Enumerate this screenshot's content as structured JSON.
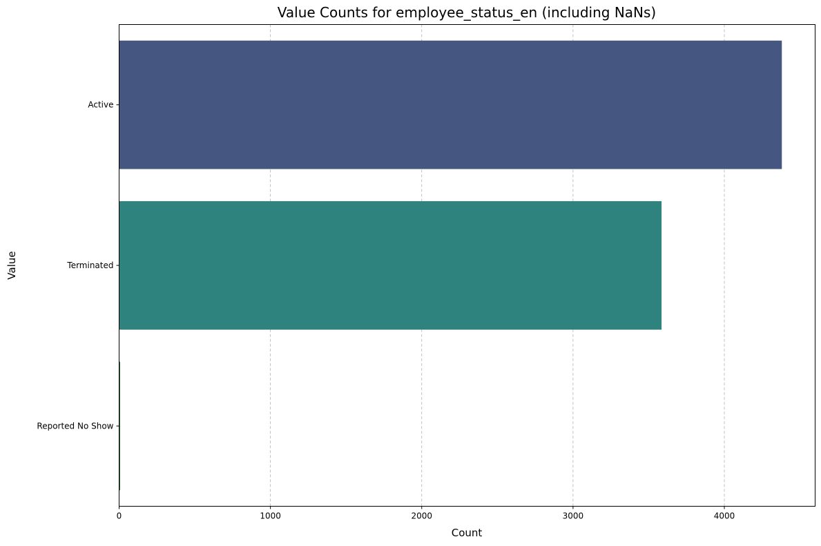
{
  "chart_data": {
    "type": "bar",
    "orientation": "horizontal",
    "title": "Value Counts for employee_status_en (including NaNs)",
    "xlabel": "Count",
    "ylabel": "Value",
    "categories": [
      "Active",
      "Terminated",
      "Reported No Show"
    ],
    "values": [
      4380,
      3585,
      5
    ],
    "colors": [
      "#455681",
      "#2e837e",
      "#2d6e3a"
    ],
    "xlim": [
      0,
      4600
    ],
    "xticks": [
      0,
      1000,
      2000,
      3000,
      4000
    ],
    "grid": "x-dashed",
    "legend": "none"
  }
}
